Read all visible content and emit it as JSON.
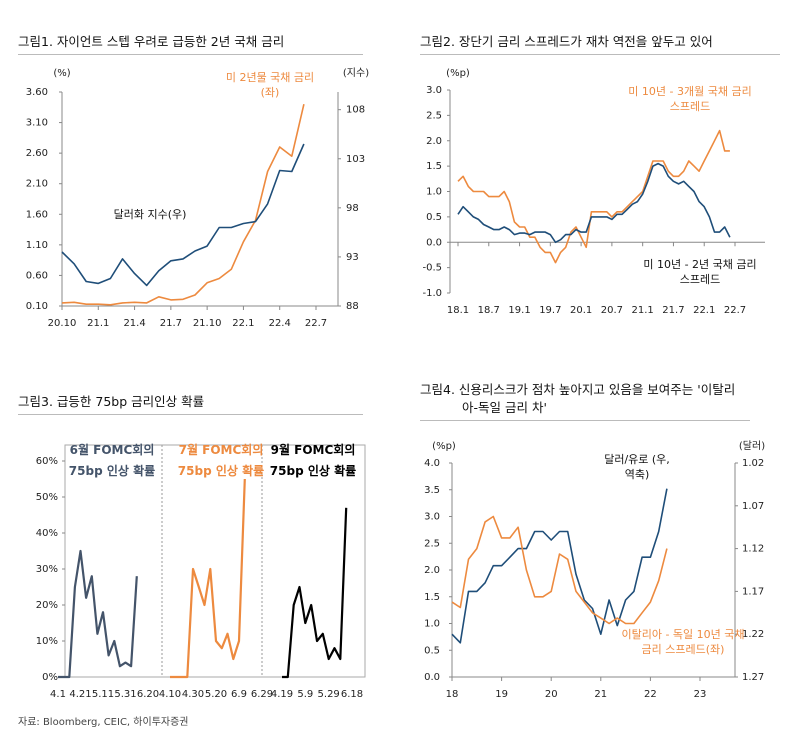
{
  "chart_data": [
    {
      "type": "line",
      "title": "그림1. 자이언트 스텝 우려로 급등한 2년 국채 금리",
      "ylabel": "(%)",
      "y2label": "(지수)",
      "categories": [
        "20.10",
        null,
        null,
        "21.1",
        null,
        null,
        "21.4",
        null,
        null,
        "21.7",
        null,
        null,
        "21.10",
        null,
        null,
        "22.1",
        null,
        null,
        "22.4",
        null,
        null,
        "22.7"
      ],
      "series": [
        {
          "name": "미 2년물 국채 금리(좌)",
          "color": "#ed8a3f",
          "values": [
            0.15,
            0.16,
            0.13,
            0.13,
            0.12,
            0.15,
            0.16,
            0.15,
            0.25,
            0.2,
            0.21,
            0.28,
            0.48,
            0.55,
            0.7,
            1.15,
            1.5,
            2.3,
            2.7,
            2.55,
            3.4,
            null
          ]
        },
        {
          "name": "달러화 지수(우)",
          "color": "#1f4e79",
          "axis": "y2",
          "values": [
            93.5,
            92.3,
            90.5,
            90.3,
            90.8,
            92.8,
            91.3,
            90.1,
            91.6,
            92.6,
            92.8,
            93.6,
            94.1,
            96.0,
            96.0,
            96.4,
            96.6,
            98.4,
            101.8,
            101.7,
            104.5,
            null
          ]
        }
      ],
      "ylim": [
        0.1,
        3.6
      ],
      "yticks": [
        {
          "value": 0.1,
          "label": "0.10"
        },
        {
          "value": 0.6,
          "label": "0.60"
        },
        {
          "value": 1.1,
          "label": "1.10"
        },
        {
          "value": 1.6,
          "label": "1.60"
        },
        {
          "value": 2.1,
          "label": "2.10"
        },
        {
          "value": 2.6,
          "label": "2.60"
        },
        {
          "value": 3.1,
          "label": "3.10"
        },
        {
          "value": 3.6,
          "label": "3.60"
        }
      ],
      "y2lim": [
        88,
        109.8
      ],
      "y2ticks": [
        88,
        93,
        98,
        103,
        108
      ],
      "grid": false
    },
    {
      "type": "line",
      "title": "그림2. 장단기 금리 스프레드가 재차 역전을 앞두고 있어",
      "ylabel": "(%p)",
      "categories": [
        "18.1",
        null,
        null,
        null,
        null,
        null,
        "18.7",
        null,
        null,
        null,
        null,
        null,
        "19.1",
        null,
        null,
        null,
        null,
        null,
        "19.7",
        null,
        null,
        null,
        null,
        null,
        "20.1",
        null,
        null,
        null,
        null,
        null,
        "20.7",
        null,
        null,
        null,
        null,
        null,
        "21.1",
        null,
        null,
        null,
        null,
        null,
        "21.7",
        null,
        null,
        null,
        null,
        null,
        "22.1",
        null,
        null,
        null,
        null,
        null,
        "22.7"
      ],
      "series": [
        {
          "name": "미 10년 - 3개월 국채 금리 스프레드",
          "color": "#ed8a3f",
          "values": [
            1.2,
            1.3,
            1.1,
            1.0,
            1.0,
            1.0,
            0.9,
            0.9,
            0.9,
            1.0,
            0.8,
            0.4,
            0.3,
            0.3,
            0.1,
            0.1,
            -0.1,
            -0.2,
            -0.2,
            -0.4,
            -0.2,
            -0.1,
            0.2,
            0.3,
            0.1,
            -0.1,
            0.6,
            0.6,
            0.6,
            0.6,
            0.5,
            0.6,
            0.6,
            0.7,
            0.8,
            0.9,
            1.0,
            1.3,
            1.6,
            1.6,
            1.6,
            1.4,
            1.3,
            1.3,
            1.4,
            1.6,
            1.5,
            1.4,
            1.6,
            1.8,
            2.0,
            2.2,
            1.8,
            1.8,
            null
          ]
        },
        {
          "name": "미 10년 - 2년 국채 금리 스프레드",
          "color": "#1f4e79",
          "values": [
            0.55,
            0.7,
            0.6,
            0.5,
            0.45,
            0.35,
            0.3,
            0.25,
            0.25,
            0.3,
            0.25,
            0.15,
            0.18,
            0.18,
            0.15,
            0.2,
            0.2,
            0.2,
            0.15,
            0.0,
            0.05,
            0.15,
            0.15,
            0.25,
            0.2,
            0.2,
            0.5,
            0.5,
            0.5,
            0.5,
            0.45,
            0.55,
            0.55,
            0.65,
            0.75,
            0.8,
            0.95,
            1.2,
            1.5,
            1.55,
            1.5,
            1.3,
            1.2,
            1.15,
            1.2,
            1.1,
            1.0,
            0.8,
            0.7,
            0.5,
            0.2,
            0.2,
            0.3,
            0.1,
            null
          ]
        }
      ],
      "ylim": [
        -1,
        3
      ],
      "yticks": [
        {
          "value": -1,
          "label": "-1.0"
        },
        {
          "value": -0.5,
          "label": "-0.5"
        },
        {
          "value": 0,
          "label": "0.0"
        },
        {
          "value": 0.5,
          "label": "0.5"
        },
        {
          "value": 1,
          "label": "1.0"
        },
        {
          "value": 1.5,
          "label": "1.5"
        },
        {
          "value": 2,
          "label": "2.0"
        },
        {
          "value": 2.5,
          "label": "2.5"
        },
        {
          "value": 3,
          "label": "3.0"
        }
      ],
      "grid": false
    },
    {
      "type": "panels",
      "title": "그림3. 급등한 75bp 금리인상 확률",
      "series": [
        {
          "name": "6월 FOMC회의 75bp 인상 확률",
          "color": "#44546a",
          "categories": [
            "4.1",
            null,
            null,
            null,
            "4.21",
            null,
            null,
            null,
            "5.11",
            null,
            null,
            null,
            "5.31",
            null,
            null,
            null,
            "6.20"
          ],
          "values": [
            0,
            0,
            0,
            25,
            35,
            22,
            28,
            12,
            18,
            6,
            10,
            3,
            4,
            3,
            28,
            null,
            null
          ]
        },
        {
          "name": "7월 FOMC회의 75bp 인상 확률",
          "color": "#ed8a3f",
          "categories": [
            "4.10",
            null,
            null,
            null,
            "4.30",
            null,
            null,
            null,
            "5.20",
            null,
            null,
            null,
            "6.9",
            null,
            null,
            null,
            "6.29"
          ],
          "values": [
            0,
            0,
            0,
            0,
            30,
            25,
            20,
            30,
            10,
            8,
            12,
            5,
            10,
            55,
            null,
            null,
            null
          ]
        },
        {
          "name": "9월 FOMC회의 75bp 인상 확률",
          "color": "#000000",
          "categories": [
            "4.19",
            null,
            null,
            null,
            "5.9",
            null,
            null,
            null,
            "5.29",
            null,
            null,
            null,
            "6.18"
          ],
          "values": [
            0,
            0,
            20,
            25,
            15,
            20,
            10,
            12,
            5,
            8,
            5,
            47,
            null
          ]
        }
      ],
      "ylim": [
        0,
        60
      ],
      "yticks": [
        {
          "value": 0,
          "label": "0%"
        },
        {
          "value": 10,
          "label": "10%"
        },
        {
          "value": 20,
          "label": "20%"
        },
        {
          "value": 30,
          "label": "30%"
        },
        {
          "value": 40,
          "label": "40%"
        },
        {
          "value": 50,
          "label": "50%"
        },
        {
          "value": 60,
          "label": "60%"
        }
      ],
      "grid": false
    },
    {
      "type": "line",
      "title": "그림4. 신용리스크가 점차 높아지고 있음을 보여주는 '이탈리아-독일 금리 차'",
      "ylabel": "(%p)",
      "y2label": "(달러)",
      "categories": [
        "18",
        null,
        null,
        null,
        null,
        null,
        "19",
        null,
        null,
        null,
        null,
        null,
        "20",
        null,
        null,
        null,
        null,
        null,
        "21",
        null,
        null,
        null,
        null,
        null,
        "22",
        null,
        null,
        null,
        null,
        null,
        "23"
      ],
      "series": [
        {
          "name": "달러/유로 (우,역축)",
          "color": "#1f4e79",
          "axis": "y2",
          "values": [
            1.22,
            1.23,
            1.17,
            1.17,
            1.16,
            1.14,
            1.14,
            1.13,
            1.12,
            1.12,
            1.1,
            1.1,
            1.11,
            1.1,
            1.1,
            1.15,
            1.18,
            1.19,
            1.22,
            1.18,
            1.21,
            1.18,
            1.17,
            1.13,
            1.13,
            1.1,
            1.05,
            null,
            null,
            null,
            null
          ]
        },
        {
          "name": "이탈리아 - 독일 10년 국채 금리 스프레드(좌)",
          "color": "#ed8a3f",
          "values": [
            1.4,
            1.3,
            2.2,
            2.4,
            2.9,
            3.0,
            2.6,
            2.6,
            2.8,
            2.0,
            1.5,
            1.5,
            1.6,
            2.3,
            2.2,
            1.6,
            1.4,
            1.2,
            1.1,
            1.0,
            1.1,
            1.0,
            1.0,
            1.2,
            1.4,
            1.8,
            2.4,
            null,
            null,
            null,
            null
          ]
        }
      ],
      "ylim": [
        0,
        4
      ],
      "yticks": [
        {
          "value": 0,
          "label": "0.0"
        },
        {
          "value": 0.5,
          "label": "0.5"
        },
        {
          "value": 1,
          "label": "1.0"
        },
        {
          "value": 1.5,
          "label": "1.5"
        },
        {
          "value": 2,
          "label": "2.0"
        },
        {
          "value": 2.5,
          "label": "2.5"
        },
        {
          "value": 3,
          "label": "3.0"
        },
        {
          "value": 3.5,
          "label": "3.5"
        },
        {
          "value": 4,
          "label": "4.0"
        }
      ],
      "y2lim": [
        1.02,
        1.27
      ],
      "y2ticks": [
        1.02,
        1.07,
        1.12,
        1.17,
        1.22,
        1.27
      ],
      "y2_inverted": true,
      "grid": false
    }
  ],
  "footer": "자료: Bloomberg, CEIC, 하이투자증권"
}
